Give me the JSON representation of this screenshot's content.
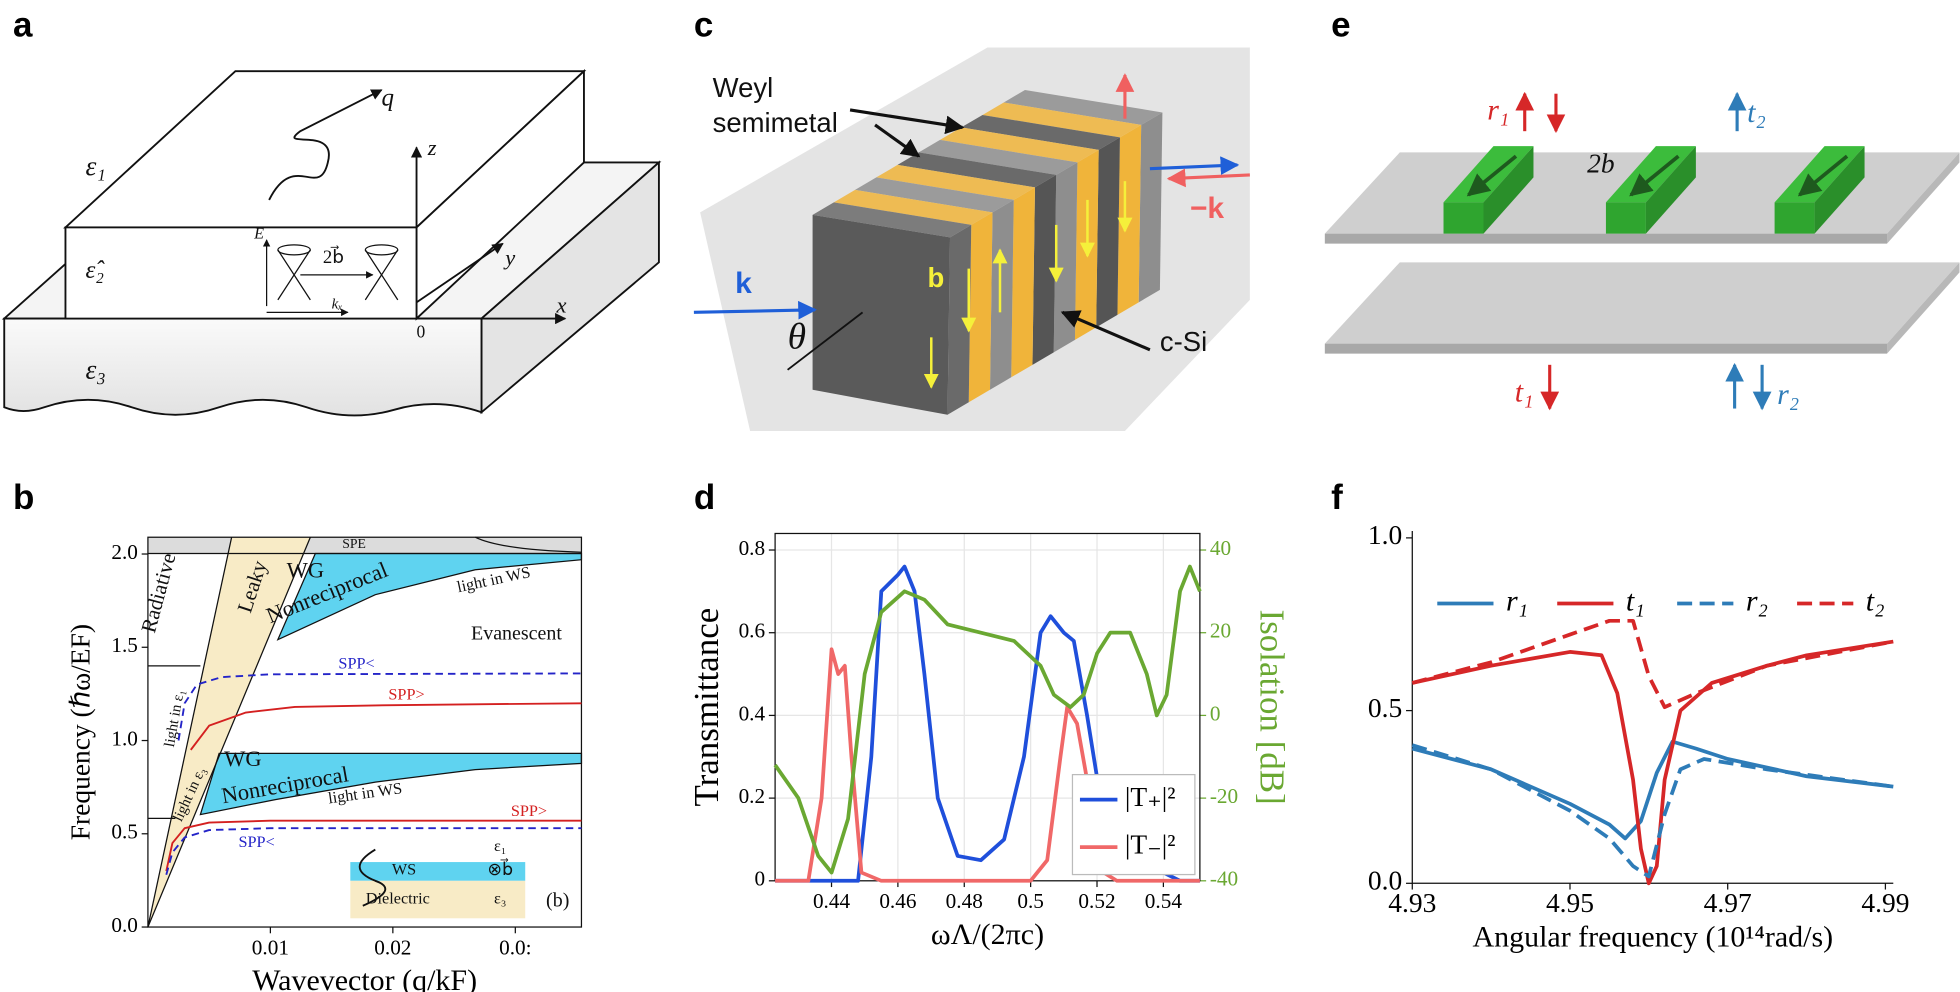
{
  "panel_labels": [
    "a",
    "b",
    "c",
    "d",
    "e",
    "f"
  ],
  "diagrams": {
    "a": {
      "labels": [
        "ε₁",
        "q⃗",
        "z",
        "ε̂₂",
        "E",
        "2b⃗",
        "kₓ",
        "y",
        "x",
        "0",
        "ε₃"
      ]
    },
    "c": {
      "labels": [
        "Weyl",
        "semimetal",
        "k",
        "b",
        "θ",
        "−k",
        "c-Si"
      ]
    },
    "e": {
      "labels": [
        "r₁",
        "t₂",
        "2b",
        "t₁",
        "r₂"
      ]
    }
  },
  "chart_data": [
    {
      "type": "line",
      "xlabel": "Wavevector (q/kF)",
      "ylabel": "Frequency (ℏω/EF)",
      "xlim": [
        0,
        0.0354
      ],
      "ylim": [
        0,
        2.09
      ],
      "xticks": [
        0.01,
        0.02,
        {
          "value": 0.03,
          "label": "0.0:"
        }
      ],
      "yticks": [
        {
          "value": 0,
          "label": "0.0"
        },
        0.5,
        {
          "value": 1,
          "label": "1.0"
        },
        1.5,
        {
          "value": 2,
          "label": "2.0"
        }
      ],
      "grid": false,
      "annotations": [
        "SPE",
        "Radiative",
        "Leaky",
        "WG",
        "Nonreciprocal",
        "light in WS",
        "Evanescent",
        "light in ε₁",
        "SPP<",
        "SPP>",
        "light in ε₃",
        "WG",
        "Nonreciprocal",
        "light in WS",
        "SPP>",
        "SPP<",
        "WS",
        "ε₁",
        "⊗b⃗",
        "Dielectric",
        "ε₃",
        "(b)"
      ],
      "series": [
        {
          "color": "#2424c8",
          "linestyle": "dashed",
          "x": [
            0.0025,
            0.003,
            0.004,
            0.006,
            0.01,
            0.0354
          ],
          "values": [
            1.0,
            1.2,
            1.3,
            1.34,
            1.355,
            1.36
          ]
        },
        {
          "color": "#d42020",
          "linestyle": "solid",
          "x": [
            0.0035,
            0.005,
            0.008,
            0.012,
            0.02,
            0.0354
          ],
          "values": [
            0.95,
            1.08,
            1.15,
            1.18,
            1.19,
            1.2
          ]
        },
        {
          "color": "#d42020",
          "linestyle": "solid",
          "x": [
            0.0015,
            0.002,
            0.003,
            0.005,
            0.01,
            0.0354
          ],
          "values": [
            0.3,
            0.45,
            0.53,
            0.56,
            0.57,
            0.57
          ]
        },
        {
          "color": "#2424c8",
          "linestyle": "dashed",
          "x": [
            0.0015,
            0.002,
            0.003,
            0.005,
            0.01,
            0.0354
          ],
          "values": [
            0.28,
            0.4,
            0.48,
            0.52,
            0.53,
            0.53
          ]
        }
      ]
    },
    {
      "type": "line",
      "xlabel": "ωΛ/(2πc)",
      "ylabel": "Transmittance",
      "y2label": "Isolation [dB]",
      "xlim": [
        0.423,
        0.551
      ],
      "ylim": [
        0,
        0.84
      ],
      "y2lim": [
        -40,
        44
      ],
      "xticks": [
        0.44,
        0.46,
        0.48,
        0.5,
        0.52,
        0.54
      ],
      "yticks": [
        0,
        0.2,
        0.4,
        0.6,
        0.8
      ],
      "y2ticks": [
        -40,
        -20,
        0,
        20,
        40
      ],
      "grid": true,
      "legend": "lower right",
      "series": [
        {
          "name": "|T₊|²",
          "color": "#1f4fdb",
          "linestyle": "solid",
          "x": [
            0.423,
            0.448,
            0.452,
            0.455,
            0.46,
            0.462,
            0.465,
            0.468,
            0.472,
            0.478,
            0.485,
            0.492,
            0.498,
            0.503,
            0.506,
            0.51,
            0.513,
            0.517,
            0.522,
            0.528,
            0.534,
            0.54,
            0.545,
            0.551
          ],
          "values": [
            0,
            0,
            0.3,
            0.7,
            0.74,
            0.76,
            0.7,
            0.5,
            0.2,
            0.06,
            0.05,
            0.1,
            0.3,
            0.6,
            0.64,
            0.6,
            0.58,
            0.4,
            0.15,
            0.05,
            0.03,
            0.02,
            0,
            0
          ]
        },
        {
          "name": "|T₋|²",
          "color": "#f06868",
          "linestyle": "solid",
          "x": [
            0.423,
            0.433,
            0.437,
            0.44,
            0.442,
            0.444,
            0.446,
            0.449,
            0.455,
            0.5,
            0.505,
            0.509,
            0.511,
            0.514,
            0.518,
            0.522,
            0.526,
            0.551
          ],
          "values": [
            0,
            0,
            0.2,
            0.56,
            0.5,
            0.52,
            0.3,
            0.02,
            0,
            0,
            0.05,
            0.3,
            0.42,
            0.38,
            0.2,
            0.02,
            0,
            0
          ]
        },
        {
          "color": "#6aa832",
          "linestyle": "solid",
          "axis": "y2",
          "x": [
            0.423,
            0.43,
            0.436,
            0.44,
            0.445,
            0.45,
            0.455,
            0.462,
            0.468,
            0.475,
            0.485,
            0.495,
            0.503,
            0.507,
            0.512,
            0.516,
            0.52,
            0.524,
            0.53,
            0.535,
            0.538,
            0.541,
            0.545,
            0.548,
            0.551
          ],
          "values": [
            -12,
            -20,
            -34,
            -38,
            -25,
            10,
            25,
            30,
            28,
            22,
            20,
            18,
            12,
            5,
            2,
            5,
            15,
            20,
            20,
            10,
            0,
            5,
            30,
            36,
            30
          ]
        }
      ]
    },
    {
      "type": "line",
      "xlabel": "Angular frequency (10¹⁴rad/s)",
      "xlim": [
        4.93,
        4.991
      ],
      "ylim": [
        0,
        1.02
      ],
      "xticks": [
        4.93,
        4.95,
        4.97,
        4.99
      ],
      "yticks": [
        {
          "value": 0,
          "label": "0.0"
        },
        0.5,
        {
          "value": 1,
          "label": "1.0"
        }
      ],
      "grid": false,
      "legend": "upper center",
      "series": [
        {
          "name": "r₁",
          "color": "#2e7cb8",
          "linestyle": "solid",
          "x": [
            4.93,
            4.94,
            4.95,
            4.955,
            4.957,
            4.959,
            4.961,
            4.963,
            4.966,
            4.97,
            4.98,
            4.991
          ],
          "values": [
            0.39,
            0.33,
            0.23,
            0.17,
            0.13,
            0.18,
            0.32,
            0.41,
            0.39,
            0.36,
            0.31,
            0.28
          ]
        },
        {
          "name": "t₁",
          "color": "#d62728",
          "linestyle": "solid",
          "x": [
            4.93,
            4.94,
            4.95,
            4.954,
            4.956,
            4.958,
            4.959,
            4.96,
            4.961,
            4.962,
            4.964,
            4.968,
            4.975,
            4.98,
            4.991
          ],
          "values": [
            0.58,
            0.63,
            0.67,
            0.66,
            0.55,
            0.3,
            0.1,
            0,
            0.05,
            0.3,
            0.5,
            0.58,
            0.63,
            0.66,
            0.7
          ]
        },
        {
          "name": "r₂",
          "color": "#2e7cb8",
          "linestyle": "dashed",
          "x": [
            4.93,
            4.94,
            4.95,
            4.955,
            4.958,
            4.96,
            4.962,
            4.964,
            4.967,
            4.975,
            4.991
          ],
          "values": [
            0.4,
            0.33,
            0.21,
            0.13,
            0.05,
            0.02,
            0.2,
            0.33,
            0.36,
            0.33,
            0.28
          ]
        },
        {
          "name": "t₂",
          "color": "#d62728",
          "linestyle": "dashed",
          "x": [
            4.93,
            4.94,
            4.95,
            4.955,
            4.958,
            4.96,
            4.962,
            4.966,
            4.975,
            4.991
          ],
          "values": [
            0.58,
            0.64,
            0.72,
            0.76,
            0.76,
            0.6,
            0.51,
            0.55,
            0.63,
            0.7
          ]
        }
      ]
    }
  ]
}
